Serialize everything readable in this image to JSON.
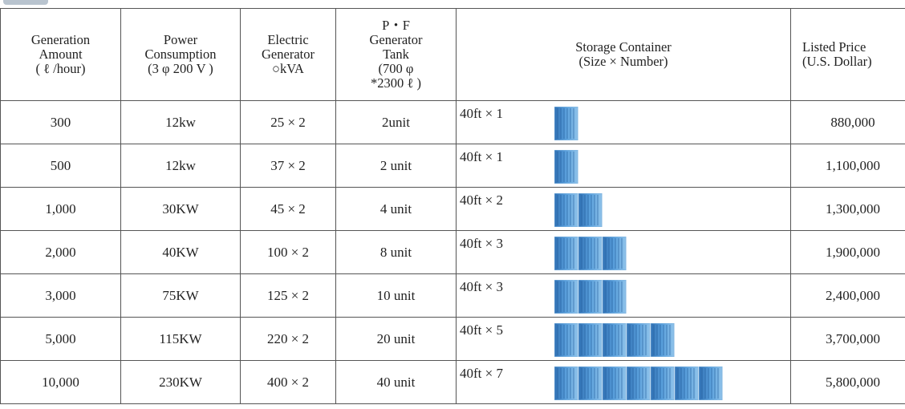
{
  "table": {
    "header": [
      "Generation\nAmount\n( ℓ /hour)",
      "Power\nConsumption\n(3 φ 200 V )",
      "Electric\nGenerator\n○kVA",
      "P・F\nGenerator\nTank\n(700 φ\n*2300 ℓ )",
      "Storage Container\n(Size × Number)",
      "Listed Price\n(U.S. Dollar)"
    ],
    "rows": [
      [
        "300",
        "12kw",
        "25 × 2",
        "2unit",
        "40ft × 1",
        "880,000"
      ],
      [
        "500",
        "12kw",
        "37 × 2",
        "2 unit",
        "40ft × 1",
        "1,100,000"
      ],
      [
        "1,000",
        "30KW",
        "45 × 2",
        "4 unit",
        "40ft × 2",
        "1,300,000"
      ],
      [
        "2,000",
        "40KW",
        "100 × 2",
        "8 unit",
        "40ft × 3",
        "1,900,000"
      ],
      [
        "3,000",
        "75KW",
        "125 × 2",
        "10 unit",
        "40ft × 3",
        "2,400,000"
      ],
      [
        "5,000",
        "115KW",
        "220 × 2",
        "20 unit",
        "40ft × 5",
        "3,700,000"
      ],
      [
        "10,000",
        "230KW",
        "400 × 2",
        "40 unit",
        "40ft × 7",
        "5,800,000"
      ]
    ]
  }
}
